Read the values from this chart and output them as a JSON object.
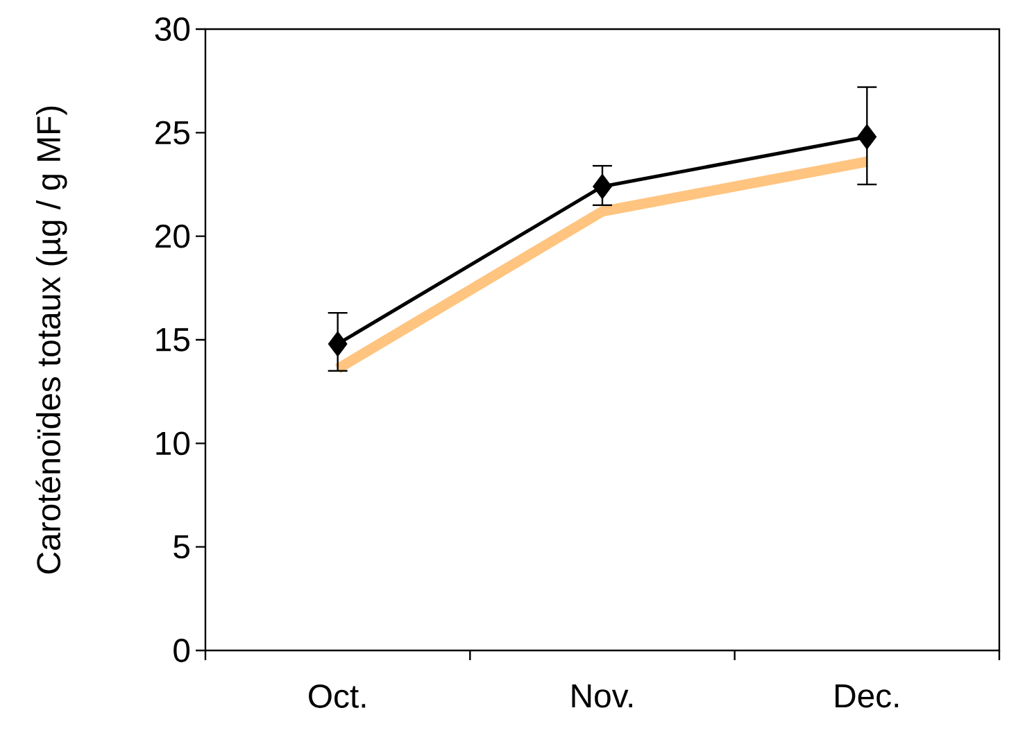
{
  "chart_data": {
    "type": "line",
    "ylabel": "Caroténoïdes totaux (µg / g MF)",
    "categories": [
      "Oct.",
      "Nov.",
      "Dec."
    ],
    "series": [
      {
        "color": "#000000",
        "values": [
          14.8,
          22.4,
          24.8
        ],
        "errors": [
          [
            13.5,
            16.3
          ],
          [
            21.5,
            23.4
          ],
          [
            22.5,
            27.2
          ]
        ],
        "marker": "diamond"
      },
      {
        "color": "#ffc47f",
        "values": [
          13.6,
          21.2,
          23.6
        ],
        "marker": "none"
      }
    ],
    "ylim": [
      0,
      30
    ],
    "yticks": [
      0,
      5,
      10,
      15,
      20,
      25,
      30
    ],
    "grid": false
  }
}
